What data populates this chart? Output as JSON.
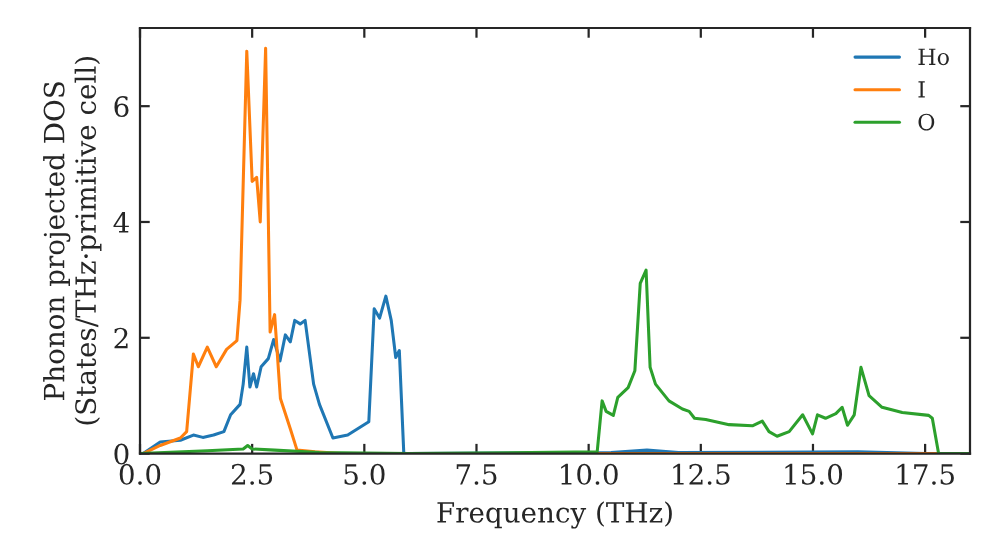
{
  "chart_data": {
    "type": "line",
    "xlabel": "Frequency (THz)",
    "ylabel": "Phonon projected DOS\n(States/THz·primitive cell)",
    "xlim": [
      0,
      18.5
    ],
    "ylim": [
      0,
      7.35
    ],
    "xticks": [
      {
        "value": 0,
        "label": "0.0"
      },
      {
        "value": 2.5,
        "label": "2.5"
      },
      {
        "value": 5,
        "label": "5.0"
      },
      {
        "value": 7.5,
        "label": "7.5"
      },
      {
        "value": 10,
        "label": "10.0"
      },
      {
        "value": 12.5,
        "label": "12.5"
      },
      {
        "value": 15,
        "label": "15.0"
      },
      {
        "value": 17.5,
        "label": "17.5"
      }
    ],
    "yticks": [
      0,
      2,
      4,
      6
    ],
    "legend": "top right",
    "grid": false,
    "series": [
      {
        "name": "Ho",
        "color": "#1f77b4",
        "x": [
          0.07,
          0.45,
          0.9,
          1.19,
          1.4,
          1.64,
          1.87,
          2.02,
          2.23,
          2.3,
          2.38,
          2.45,
          2.53,
          2.6,
          2.7,
          2.86,
          2.98,
          3.12,
          3.24,
          3.35,
          3.45,
          3.57,
          3.68,
          3.87,
          4.0,
          4.3,
          4.63,
          5.1,
          5.22,
          5.34,
          5.48,
          5.6,
          5.7,
          5.78,
          5.88,
          10.5,
          11.3,
          12.0,
          16.0,
          17.5,
          18.5
        ],
        "values": [
          0,
          0.2,
          0.23,
          0.32,
          0.28,
          0.32,
          0.38,
          0.67,
          0.85,
          1.2,
          1.84,
          1.15,
          1.38,
          1.15,
          1.5,
          1.64,
          1.97,
          1.6,
          2.05,
          1.93,
          2.3,
          2.24,
          2.3,
          1.2,
          0.85,
          0.27,
          0.32,
          0.55,
          2.5,
          2.34,
          2.72,
          2.3,
          1.66,
          1.78,
          0,
          0.02,
          0.06,
          0.02,
          0.03,
          0,
          0
        ]
      },
      {
        "name": "I",
        "color": "#ff7f0e",
        "x": [
          0.07,
          0.45,
          0.9,
          1.04,
          1.19,
          1.3,
          1.5,
          1.7,
          1.93,
          2.16,
          2.23,
          2.38,
          2.5,
          2.6,
          2.68,
          2.8,
          2.9,
          3.0,
          3.13,
          3.35,
          3.5,
          3.9,
          4.5,
          18.5
        ],
        "values": [
          0,
          0.14,
          0.27,
          0.38,
          1.72,
          1.5,
          1.84,
          1.5,
          1.8,
          1.95,
          2.65,
          6.95,
          4.7,
          4.77,
          4.0,
          7.0,
          2.1,
          2.4,
          0.95,
          0.43,
          0.06,
          0.03,
          0,
          0
        ]
      },
      {
        "name": "O",
        "color": "#2ca02c",
        "x": [
          0,
          1.5,
          2.3,
          2.4,
          2.5,
          3.0,
          4.0,
          6.0,
          10.19,
          10.3,
          10.39,
          10.55,
          10.65,
          10.88,
          11.03,
          11.15,
          11.28,
          11.37,
          11.49,
          11.79,
          12.09,
          12.24,
          12.36,
          12.61,
          13.13,
          13.65,
          13.87,
          14.02,
          14.2,
          14.47,
          14.77,
          14.99,
          15.1,
          15.28,
          15.51,
          15.65,
          15.77,
          15.92,
          16.07,
          16.25,
          16.54,
          16.99,
          17.58,
          17.66,
          17.8,
          18.5
        ],
        "values": [
          0,
          0.05,
          0.08,
          0.14,
          0.08,
          0.06,
          0.02,
          0,
          0.03,
          0.91,
          0.73,
          0.66,
          0.97,
          1.14,
          1.43,
          2.94,
          3.17,
          1.49,
          1.2,
          0.91,
          0.77,
          0.73,
          0.61,
          0.59,
          0.5,
          0.48,
          0.56,
          0.38,
          0.3,
          0.38,
          0.67,
          0.34,
          0.67,
          0.61,
          0.69,
          0.8,
          0.49,
          0.67,
          1.49,
          1.0,
          0.8,
          0.71,
          0.66,
          0.61,
          0,
          0
        ]
      }
    ]
  }
}
